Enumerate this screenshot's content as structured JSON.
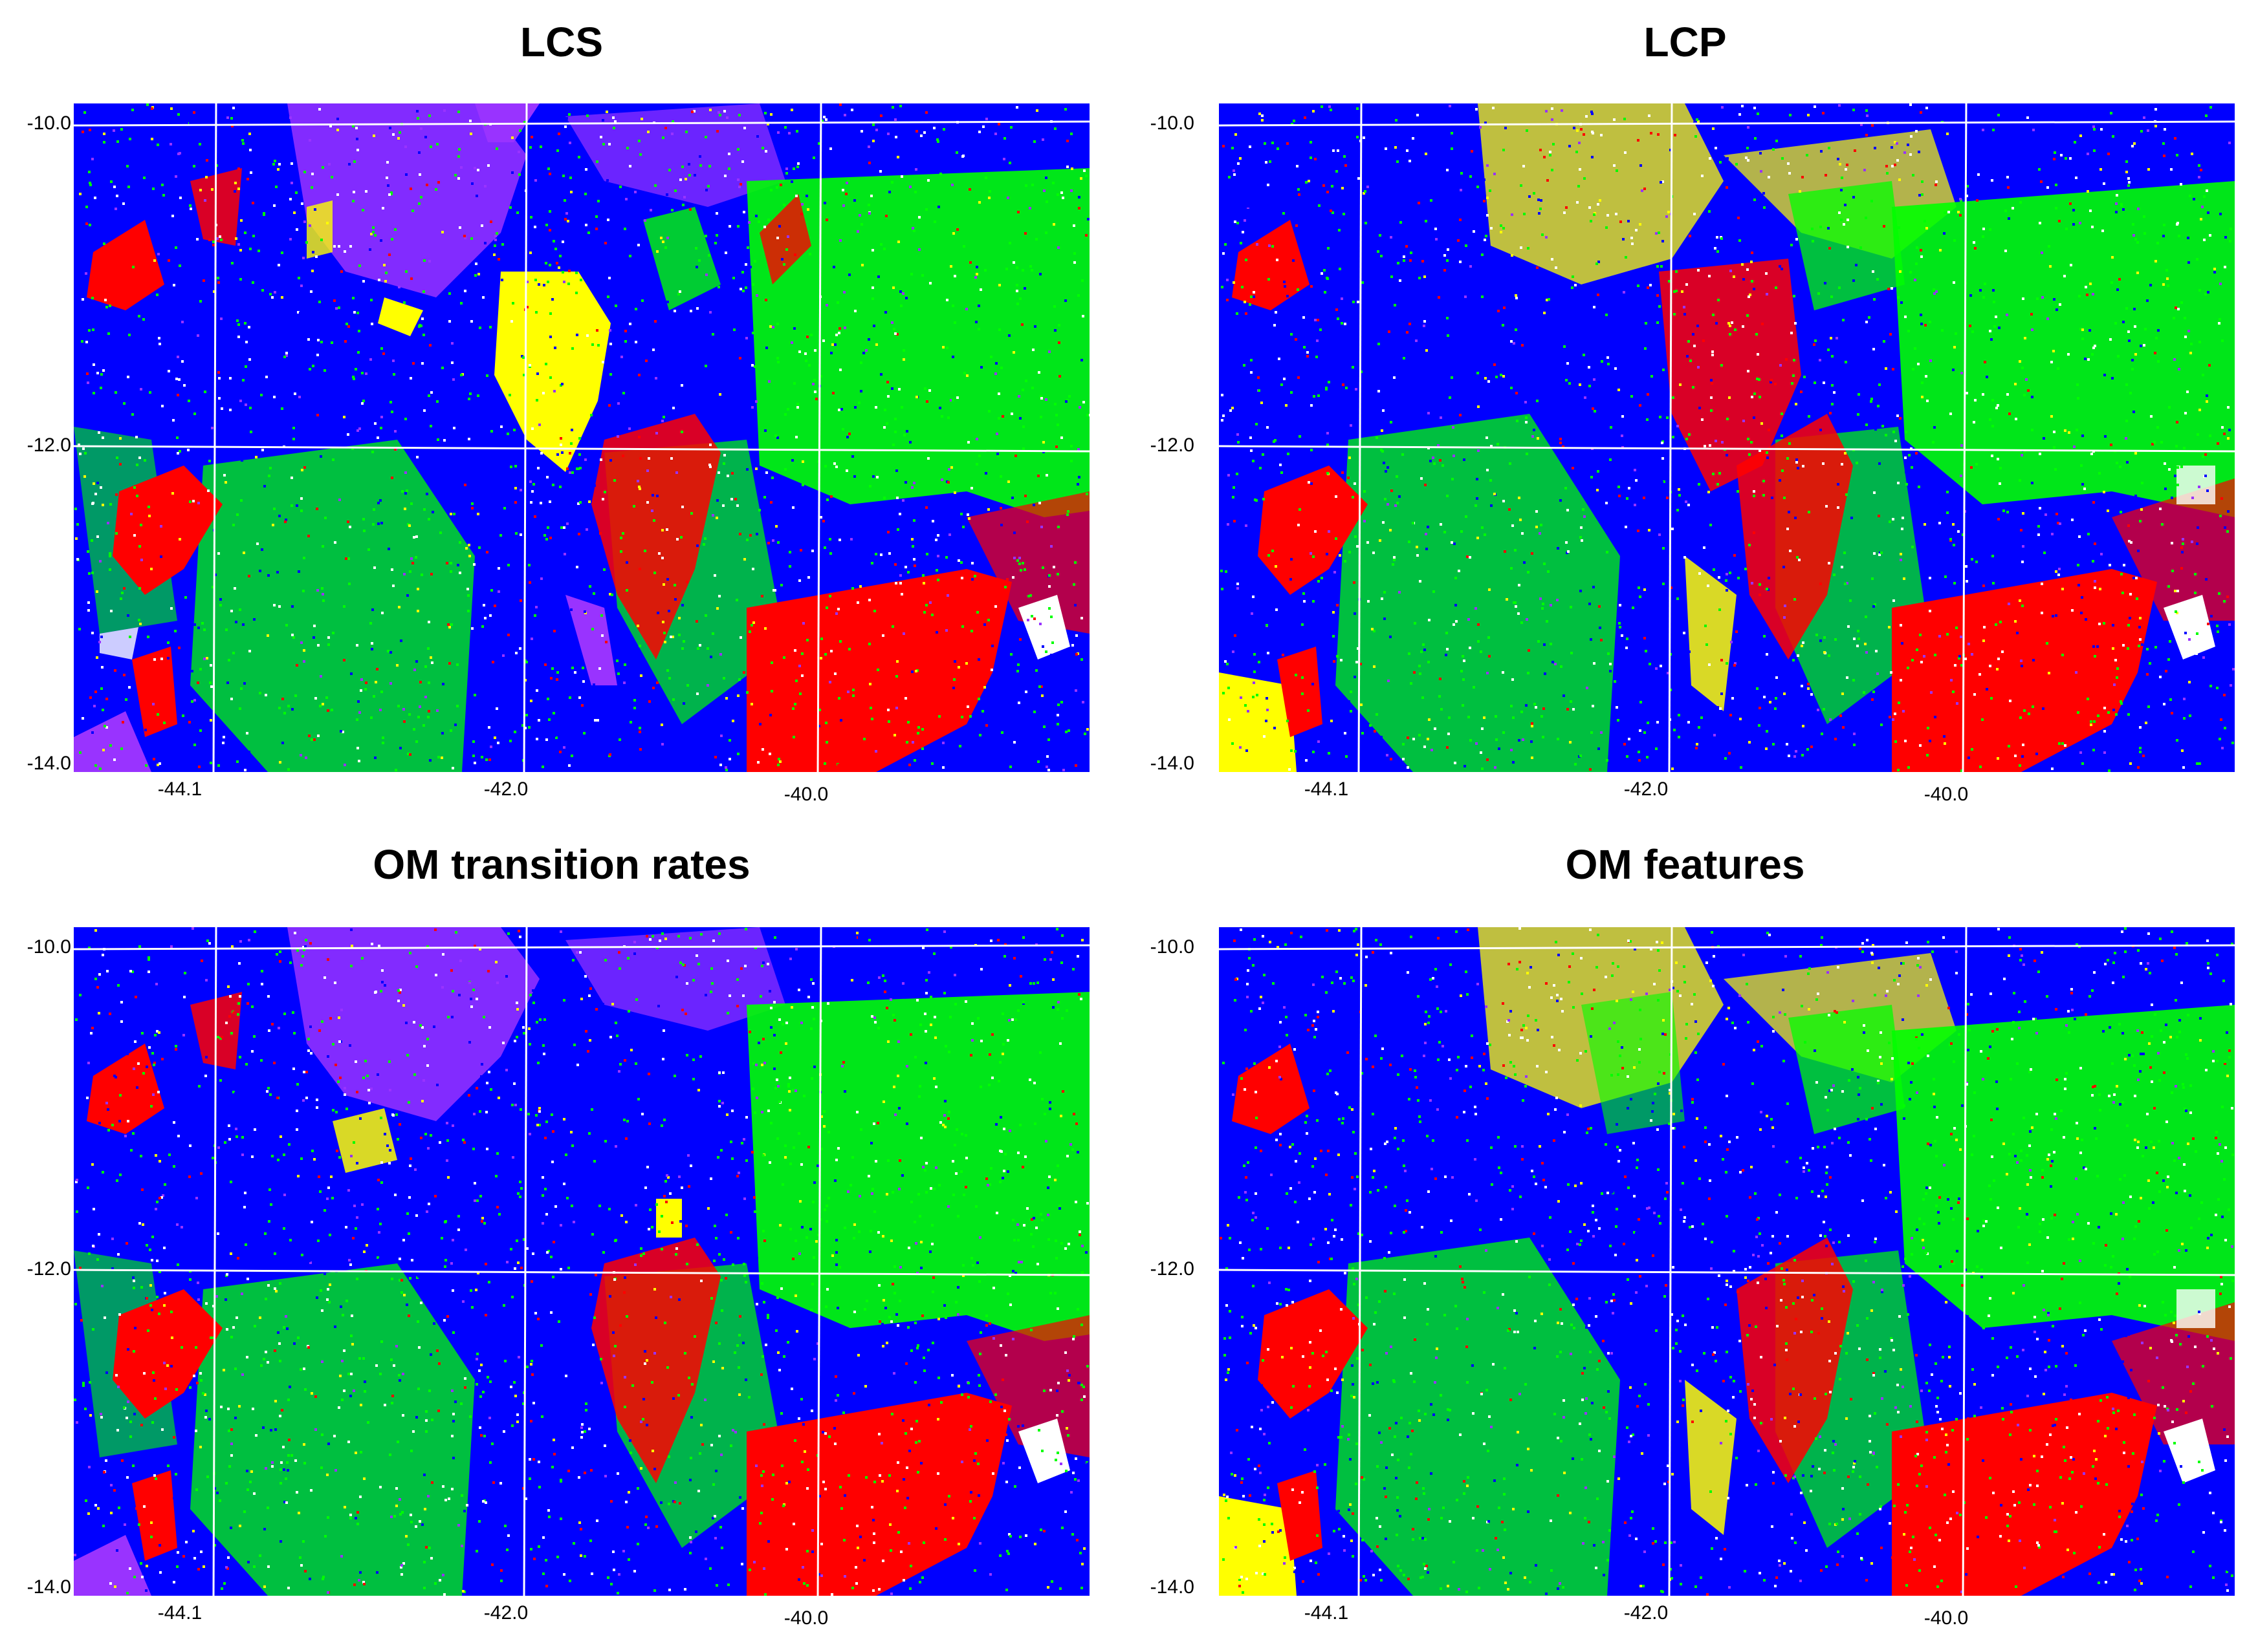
{
  "panels": [
    {
      "id": "lcs",
      "title": "LCS"
    },
    {
      "id": "lcp",
      "title": "LCP"
    },
    {
      "id": "omtr",
      "title": "OM transition rates"
    },
    {
      "id": "omf",
      "title": "OM features"
    }
  ],
  "lat_ticks": [
    "-10.0",
    "-12.0",
    "-14.0"
  ],
  "lon_ticks": [
    "-44.1",
    "-42.0",
    "-40.0"
  ],
  "class_colors": {
    "class_a": "#0000ff",
    "class_b": "#00ff00",
    "class_c": "#ff0000",
    "class_d": "#ffff00",
    "class_e": "#9933ff",
    "class_f": "#ffffff"
  },
  "grid_color": "#ffffff"
}
